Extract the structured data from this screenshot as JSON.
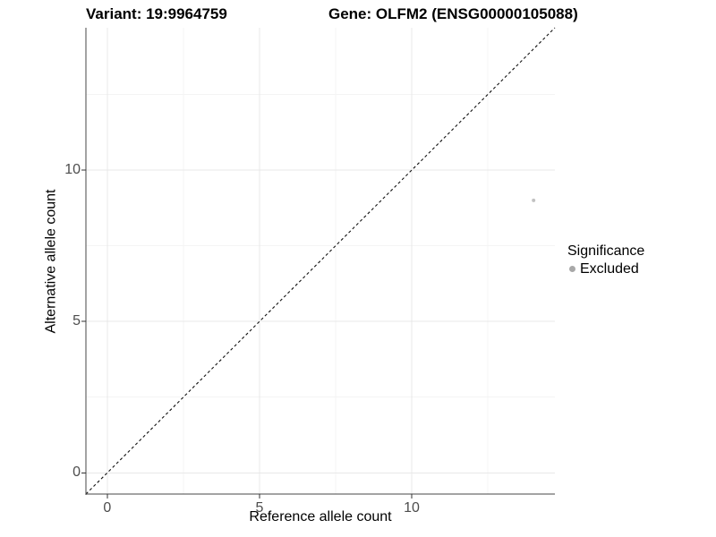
{
  "titles": {
    "variant": "Variant: 19:9964759",
    "gene": "Gene: OLFM2 (ENSG00000105088)"
  },
  "axes": {
    "x_label": "Reference allele count",
    "y_label": "Alternative allele count"
  },
  "legend": {
    "title": "Significance",
    "entries": [
      {
        "label": "Excluded",
        "color": "#a8a8a8",
        "shape": "circle"
      }
    ]
  },
  "chart_data": {
    "type": "scatter",
    "title": "Variant: 19:9964759 | Gene: OLFM2 (ENSG00000105088)",
    "xlabel": "Reference allele count",
    "ylabel": "Alternative allele count",
    "xlim": [
      -0.7,
      14.7
    ],
    "ylim": [
      -0.7,
      14.7
    ],
    "x_ticks": [
      0,
      5,
      10
    ],
    "y_ticks": [
      0,
      5,
      10
    ],
    "x_minor_ticks": [
      2.5,
      7.5,
      12.5
    ],
    "y_minor_ticks": [
      2.5,
      7.5,
      12.5
    ],
    "grid": "major+minor",
    "legend_position": "right",
    "series": [
      {
        "name": "Excluded",
        "points": [
          {
            "x": 14,
            "y": 9
          }
        ],
        "color": "#c2c2c2",
        "marker_radius": 2
      }
    ],
    "annotations": [
      {
        "type": "abline",
        "slope": 1,
        "intercept": 0,
        "style": "dashed",
        "color": "#111111"
      }
    ]
  },
  "colors": {
    "background": "#ffffff",
    "axis_line": "#474747",
    "tick_mark": "#333333",
    "tick_text": "#4d4d4d",
    "grid_major": "#e8e8e8",
    "grid_minor": "#f4f4f4"
  }
}
